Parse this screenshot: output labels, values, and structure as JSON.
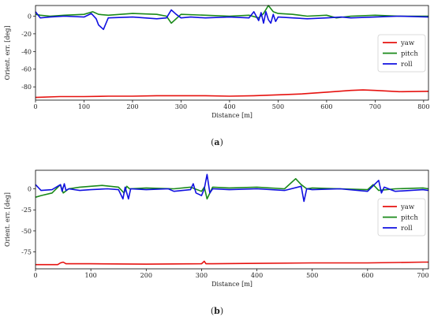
{
  "captions": {
    "a": {
      "prefix": "(",
      "letter": "a",
      "suffix": ")"
    },
    "b": {
      "prefix": "(",
      "letter": "b",
      "suffix": ")"
    }
  },
  "colors": {
    "yaw": "#e6120f",
    "pitch": "#1a8a1a",
    "roll": "#1010e0"
  },
  "chart_data": [
    {
      "type": "line",
      "xlabel": "Distance [m]",
      "ylabel": "Orient. err. [deg]",
      "xlim": [
        0,
        810
      ],
      "ylim": [
        -95,
        12
      ],
      "xticks": [
        0,
        100,
        200,
        300,
        400,
        500,
        600,
        700,
        800
      ],
      "yticks": [
        0,
        -20,
        -40,
        -60,
        -80
      ],
      "grid": false,
      "legend": "right",
      "series": [
        {
          "name": "yaw",
          "color": "#e6120f",
          "x": [
            0,
            50,
            100,
            150,
            200,
            250,
            300,
            350,
            400,
            450,
            500,
            550,
            600,
            650,
            675,
            700,
            750,
            810
          ],
          "y": [
            -92,
            -91,
            -91,
            -90.5,
            -90.5,
            -90,
            -90,
            -90,
            -90.5,
            -90,
            -89,
            -88,
            -86,
            -84,
            -83.5,
            -84,
            -85.5,
            -85
          ]
        },
        {
          "name": "pitch",
          "color": "#1a8a1a",
          "x": [
            0,
            10,
            30,
            60,
            100,
            118,
            130,
            150,
            200,
            250,
            270,
            280,
            300,
            350,
            400,
            440,
            460,
            470,
            480,
            490,
            500,
            530,
            560,
            600,
            620,
            650,
            700,
            750,
            810
          ],
          "y": [
            2,
            1,
            0,
            1,
            2,
            5,
            2,
            1,
            3,
            2,
            0,
            -8,
            2,
            1,
            0,
            1,
            -2,
            3,
            12,
            5,
            3,
            2,
            0,
            1,
            -2,
            0,
            1,
            0,
            0
          ]
        },
        {
          "name": "roll",
          "color": "#1010e0",
          "x": [
            0,
            10,
            30,
            60,
            100,
            115,
            125,
            130,
            140,
            150,
            200,
            250,
            270,
            280,
            290,
            300,
            320,
            350,
            400,
            440,
            450,
            460,
            465,
            470,
            475,
            480,
            485,
            490,
            495,
            500,
            530,
            560,
            600,
            630,
            650,
            700,
            750,
            810
          ],
          "y": [
            5,
            -2,
            -1,
            0,
            -1,
            3,
            -3,
            -10,
            -15,
            -2,
            -1,
            -3,
            -2,
            7,
            2,
            -2,
            -1,
            -2,
            -1,
            -2,
            5,
            -5,
            4,
            -8,
            5,
            -4,
            -8,
            2,
            -6,
            -1,
            -2,
            -3,
            -2,
            -1,
            -2,
            -1,
            0,
            -1
          ]
        }
      ]
    },
    {
      "type": "line",
      "xlabel": "Distance [m]",
      "ylabel": "Orient. err. [deg]",
      "xlim": [
        0,
        710
      ],
      "ylim": [
        -95,
        22
      ],
      "xticks": [
        0,
        100,
        200,
        300,
        400,
        500,
        600,
        700
      ],
      "yticks": [
        0,
        -25,
        -50,
        -75
      ],
      "grid": false,
      "legend": "right",
      "series": [
        {
          "name": "yaw",
          "color": "#e6120f",
          "x": [
            0,
            40,
            45,
            50,
            55,
            100,
            200,
            300,
            305,
            308,
            312,
            320,
            400,
            500,
            600,
            650,
            700,
            710
          ],
          "y": [
            -90,
            -90,
            -88,
            -87,
            -89,
            -89,
            -89.5,
            -89,
            -86,
            -89,
            -89,
            -89,
            -88.5,
            -88,
            -88,
            -87.5,
            -87,
            -87
          ]
        },
        {
          "name": "pitch",
          "color": "#1a8a1a",
          "x": [
            0,
            10,
            30,
            45,
            50,
            60,
            80,
            100,
            120,
            150,
            160,
            165,
            170,
            200,
            250,
            280,
            300,
            305,
            310,
            320,
            350,
            400,
            450,
            470,
            480,
            490,
            500,
            550,
            600,
            610,
            620,
            650,
            700,
            710
          ],
          "y": [
            -10,
            -8,
            -5,
            5,
            -5,
            0,
            2,
            3,
            4,
            2,
            -5,
            3,
            0,
            1,
            0,
            2,
            -3,
            2,
            -12,
            2,
            1,
            2,
            0,
            12,
            5,
            0,
            1,
            0,
            -1,
            5,
            -2,
            0,
            1,
            0
          ]
        },
        {
          "name": "roll",
          "color": "#1010e0",
          "x": [
            0,
            10,
            30,
            45,
            48,
            52,
            55,
            60,
            80,
            100,
            130,
            150,
            158,
            162,
            168,
            172,
            200,
            240,
            250,
            280,
            285,
            290,
            300,
            305,
            310,
            315,
            320,
            350,
            400,
            450,
            480,
            485,
            490,
            500,
            550,
            600,
            620,
            625,
            630,
            650,
            700,
            710
          ],
          "y": [
            5,
            -2,
            -1,
            5,
            -3,
            6,
            -2,
            0,
            -2,
            -1,
            0,
            -1,
            -12,
            2,
            -12,
            0,
            -1,
            0,
            -3,
            -1,
            6,
            -5,
            -8,
            0,
            17,
            -5,
            0,
            -1,
            0,
            -2,
            3,
            -15,
            0,
            -1,
            0,
            -3,
            10,
            -5,
            2,
            -3,
            -1,
            -2
          ]
        }
      ]
    }
  ]
}
